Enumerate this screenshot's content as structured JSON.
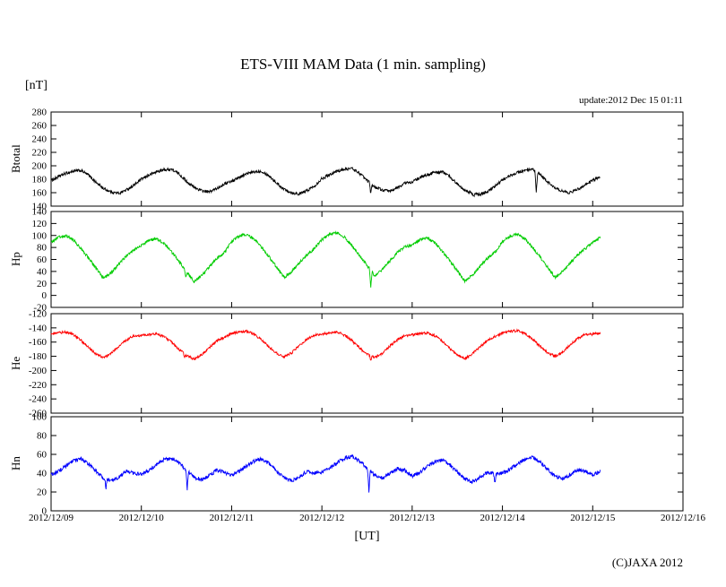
{
  "title": "ETS-VIII MAM Data (1 min. sampling)",
  "unit_label": "[nT]",
  "update_label": "update:2012 Dec 15 01:11",
  "copyright": "(C)JAXA 2012",
  "x_axis": {
    "label": "[UT]",
    "range_hours": [
      0,
      168
    ],
    "tick_step_hours": 24,
    "tick_labels": [
      "2012/12/09",
      "2012/12/10",
      "2012/12/11",
      "2012/12/12",
      "2012/12/13",
      "2012/12/14",
      "2012/12/15",
      "2012/12/16"
    ]
  },
  "chart_data": [
    {
      "type": "line",
      "name": "Btotal",
      "color": "#000000",
      "ylim": [
        140,
        280
      ],
      "ytick_step": 20,
      "x_start_hour": 0,
      "x_step_hours": 2,
      "noise_amplitude": 2.2,
      "values": [
        178,
        184,
        189,
        192,
        193,
        186,
        175,
        166,
        161,
        159,
        164,
        171,
        180,
        186,
        191,
        194,
        195,
        188,
        177,
        168,
        163,
        161,
        166,
        173,
        177,
        183,
        188,
        191,
        192,
        185,
        174,
        165,
        160,
        158,
        163,
        170,
        181,
        187,
        192,
        195,
        196,
        189,
        178,
        169,
        164,
        162,
        167,
        174,
        176,
        182,
        187,
        190,
        191,
        184,
        173,
        164,
        159,
        157,
        162,
        169,
        179,
        185,
        190,
        193,
        194,
        187,
        176,
        167,
        162,
        160,
        165,
        172,
        178,
        184
      ],
      "spikes": [
        {
          "t": 85,
          "v": 158
        },
        {
          "t": 112.3,
          "v": 154
        },
        {
          "t": 129,
          "v": 160
        }
      ]
    },
    {
      "type": "line",
      "name": "Hp",
      "color": "#00cc00",
      "ylim": [
        -20,
        140
      ],
      "ytick_step": 20,
      "x_start_hour": 0,
      "x_step_hours": 2,
      "noise_amplitude": 2.4,
      "values": [
        88,
        97,
        100,
        92,
        78,
        62,
        45,
        28,
        38,
        52,
        66,
        76,
        83,
        92,
        95,
        87,
        73,
        57,
        40,
        23,
        33,
        47,
        61,
        71,
        90,
        99,
        102,
        94,
        80,
        64,
        47,
        30,
        40,
        54,
        68,
        78,
        93,
        102,
        105,
        97,
        83,
        67,
        50,
        33,
        43,
        57,
        71,
        81,
        84,
        93,
        96,
        88,
        74,
        58,
        41,
        24,
        34,
        48,
        62,
        72,
        90,
        99,
        102,
        94,
        80,
        64,
        47,
        30,
        40,
        54,
        68,
        78,
        88,
        97
      ],
      "spikes": [
        {
          "t": 85,
          "v": 13
        },
        {
          "t": 35.8,
          "v": 30
        }
      ]
    },
    {
      "type": "line",
      "name": "He",
      "color": "#ff0000",
      "ylim": [
        -260,
        -120
      ],
      "ytick_step": 20,
      "x_start_hour": 0,
      "x_step_hours": 2,
      "noise_amplitude": 1.8,
      "values": [
        -149,
        -147,
        -146,
        -150,
        -158,
        -168,
        -177,
        -182,
        -176,
        -166,
        -157,
        -151,
        -151,
        -149,
        -148,
        -152,
        -160,
        -170,
        -179,
        -184,
        -178,
        -168,
        -159,
        -153,
        -148,
        -146,
        -145,
        -149,
        -157,
        -167,
        -176,
        -181,
        -175,
        -165,
        -156,
        -150,
        -149,
        -147,
        -146,
        -150,
        -158,
        -168,
        -177,
        -182,
        -176,
        -166,
        -157,
        -151,
        -150,
        -148,
        -147,
        -151,
        -159,
        -169,
        -178,
        -183,
        -177,
        -167,
        -158,
        -152,
        -147,
        -145,
        -144,
        -148,
        -156,
        -166,
        -175,
        -180,
        -174,
        -164,
        -155,
        -149,
        -149,
        -147
      ],
      "spikes": [
        {
          "t": 85,
          "v": -187
        },
        {
          "t": 35.5,
          "v": -181
        }
      ]
    },
    {
      "type": "line",
      "name": "Hn",
      "color": "#0000ff",
      "ylim": [
        0,
        100
      ],
      "ytick_step": 20,
      "x_start_hour": 0,
      "x_step_hours": 2,
      "noise_amplitude": 2.0,
      "values": [
        38,
        42,
        48,
        53,
        55,
        50,
        42,
        35,
        32,
        36,
        42,
        40,
        39,
        43,
        49,
        54,
        56,
        51,
        43,
        36,
        33,
        37,
        43,
        41,
        38,
        42,
        48,
        53,
        55,
        50,
        42,
        35,
        32,
        36,
        42,
        40,
        41,
        45,
        51,
        56,
        58,
        53,
        45,
        38,
        35,
        39,
        45,
        43,
        37,
        41,
        47,
        52,
        54,
        49,
        41,
        34,
        31,
        35,
        41,
        39,
        40,
        44,
        50,
        55,
        57,
        52,
        44,
        37,
        34,
        38,
        44,
        42,
        38,
        42
      ],
      "spikes": [
        {
          "t": 14.6,
          "v": 24
        },
        {
          "t": 36.2,
          "v": 23
        },
        {
          "t": 84.5,
          "v": 21
        },
        {
          "t": 118,
          "v": 30
        }
      ]
    }
  ]
}
